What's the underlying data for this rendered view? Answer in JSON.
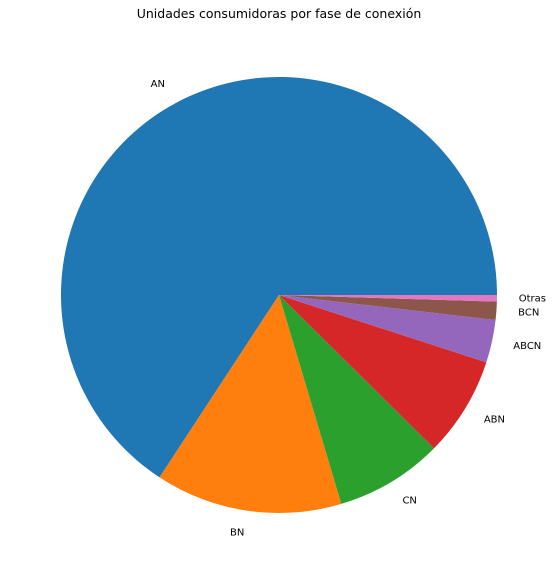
{
  "chart_data": {
    "type": "pie",
    "title": "Unidades consumidoras por fase de conexión",
    "start_angle_deg": 0,
    "direction": "counterclockwise",
    "slices": [
      {
        "label": "AN",
        "value": 68.4,
        "color": "#1f77b4"
      },
      {
        "label": "BN",
        "value": 14.4,
        "color": "#ff7f0e"
      },
      {
        "label": "CN",
        "value": 8.3,
        "color": "#2ca02c"
      },
      {
        "label": "ABN",
        "value": 7.7,
        "color": "#d62728"
      },
      {
        "label": "ABCN",
        "value": 3.3,
        "color": "#9467bd"
      },
      {
        "label": "BCN",
        "value": 1.4,
        "color": "#8c564b"
      },
      {
        "label": "Otras",
        "value": 0.5,
        "color": "#e377c2"
      }
    ]
  }
}
